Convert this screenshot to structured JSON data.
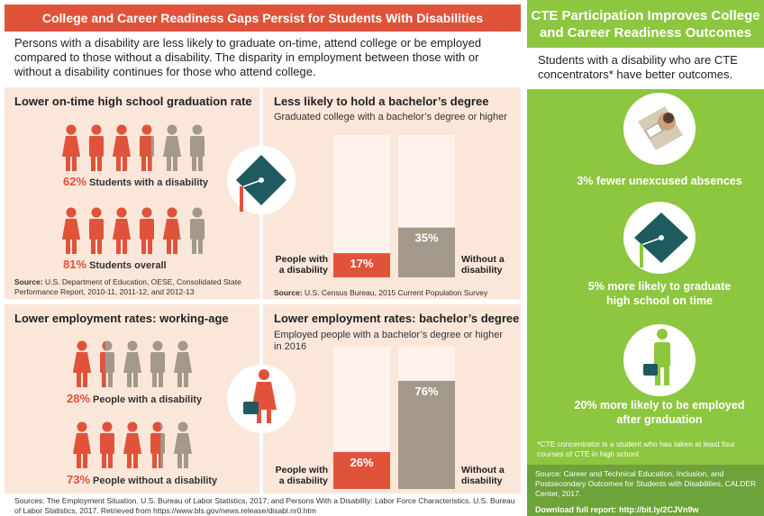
{
  "left": {
    "title": "College and Career Readiness Gaps Persist for Students With Disabilities",
    "intro": "Persons with a disability are less likely to graduate on-time, attend college or be employed compared to those without a disability. The disparity in employment between those with or without a disability continues for those who attend college.",
    "panels": [
      {
        "title": "Lower on-time high school graduation rate",
        "stats": [
          {
            "value": 62,
            "value_label": "62%",
            "label": "Students with a disability"
          },
          {
            "value": 81,
            "value_label": "81%",
            "label": "Students overall"
          }
        ],
        "source_label": "Source:",
        "source": "U.S. Department of Education, OESE, Consolidated State Performance Report, 2010-11, 2011-12, and 2012-13"
      },
      {
        "title": "Less likely to hold a bachelor’s degree",
        "subtitle": "Graduated college with a bachelor’s degree or higher",
        "categories": [
          "People with a disability",
          "Without a disability"
        ],
        "values": [
          17,
          35
        ],
        "value_labels": [
          "17%",
          "35%"
        ],
        "ylim": [
          0,
          100
        ],
        "colors": [
          "#e0533a",
          "#a3998a"
        ],
        "source_label": "Source:",
        "source": "U.S. Census Bureau, 2015 Current Population Survey"
      },
      {
        "title": "Lower employment rates: working-age",
        "stats": [
          {
            "value": 28,
            "value_label": "28%",
            "label": "People with a disability"
          },
          {
            "value": 73,
            "value_label": "73%",
            "label": "People without a disability"
          }
        ]
      },
      {
        "title": "Lower employment rates: bachelor’s degree",
        "subtitle": "Employed people with a bachelor’s degree or higher in 2016",
        "categories": [
          "People with a disability",
          "Without a disability"
        ],
        "values": [
          26,
          76
        ],
        "value_labels": [
          "26%",
          "76%"
        ],
        "ylim": [
          0,
          100
        ],
        "colors": [
          "#e0533a",
          "#a3998a"
        ]
      }
    ],
    "sources": "Sources: The Employment Situation. U.S. Bureau of Labor Statistics, 2017; and Persons With a Disability: Labor Force Characteristics. U.S. Bureau of Labor Statistics, 2017. Retrieved from https://www.bls.gov/news.release/disabl.nr0.htm"
  },
  "right": {
    "title": "CTE Participation Improves College and Career Readiness Outcomes",
    "intro": "Students with a disability who are CTE concentrators* have better outcomes.",
    "outcomes": [
      "3% fewer unexcused absences",
      "5% more likely to graduate high school on time",
      "20% more likely to be employed after graduation"
    ],
    "footnote": "*CTE concentrator is a student who has taken at least four courses of CTE in high school.",
    "source": "Source: Career and Technical Education, Inclusion, and Postsecondary Outcomes for Students with Disabilities, CALDER Center, 2017.",
    "download": "Download full report: http://bit.ly/2CJVn9w"
  }
}
